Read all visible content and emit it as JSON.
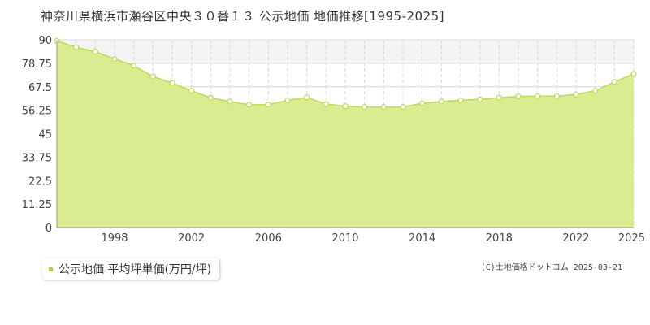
{
  "title": "神奈川県横浜市瀬谷区中央３０番１３ 公示地価 地価推移[1995-2025]",
  "legend": {
    "label": "公示地価 平均坪単価(万円/坪)"
  },
  "copyright": "(C)土地価格ドットコム 2025-03-21",
  "colors": {
    "fill": "#d9ec90",
    "line": "#b8dc55",
    "marker_fill": "#ffffff",
    "legend_marker": "#a8d63a",
    "grid": "#d8d8d8",
    "upper_band": "#f4f4f4"
  },
  "chart_data": {
    "type": "area",
    "title": "",
    "xlabel": "",
    "ylabel": "",
    "x": [
      1995,
      1996,
      1997,
      1998,
      1999,
      2000,
      2001,
      2002,
      2003,
      2004,
      2005,
      2006,
      2007,
      2008,
      2009,
      2010,
      2011,
      2012,
      2013,
      2014,
      2015,
      2016,
      2017,
      2018,
      2019,
      2020,
      2021,
      2022,
      2023,
      2024,
      2025
    ],
    "series": [
      {
        "name": "公示地価 平均坪単価(万円/坪)",
        "values": [
          89.5,
          86.4,
          84.3,
          80.8,
          77.6,
          72.4,
          69.3,
          65.6,
          62.2,
          60.4,
          58.9,
          58.9,
          61.0,
          62.4,
          59.2,
          58.2,
          57.8,
          57.8,
          57.8,
          59.6,
          60.4,
          61.0,
          61.5,
          62.3,
          62.9,
          63.0,
          63.0,
          63.8,
          65.6,
          69.8,
          73.7
        ]
      }
    ],
    "xlim": [
      1995,
      2025
    ],
    "ylim": [
      0,
      90
    ],
    "yticks": [
      "0",
      "11.25",
      "22.5",
      "33.75",
      "45",
      "56.25",
      "67.5",
      "78.75",
      "90"
    ],
    "xticks": [
      "1998",
      "2002",
      "2006",
      "2010",
      "2014",
      "2018",
      "2022",
      "2025"
    ],
    "grid": true,
    "legend_position": "bottom-left"
  }
}
